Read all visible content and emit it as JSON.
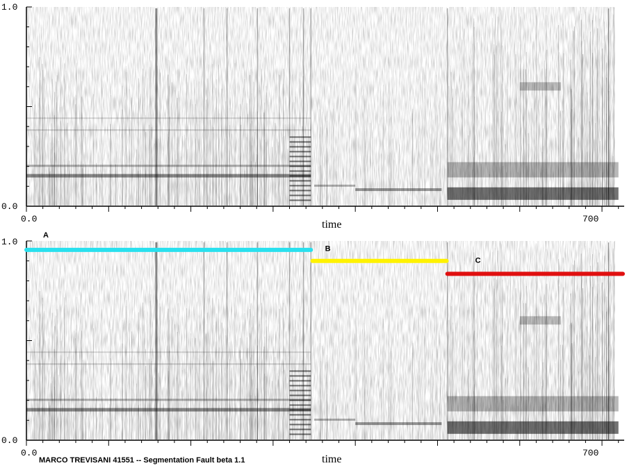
{
  "chart_data": [
    {
      "type": "heatmap",
      "panel": "top",
      "xlabel": "time",
      "x_ticks": [
        "0.0",
        "700"
      ],
      "y_ticks": [
        "0.0",
        "1.0"
      ],
      "xlim": [
        0,
        720
      ],
      "ylim": [
        0,
        1
      ],
      "grid": false,
      "colors": {
        "ink": "#000000",
        "background": "#ffffff"
      }
    },
    {
      "type": "heatmap",
      "panel": "bottom",
      "xlabel": "time",
      "x_ticks": [
        "0.0",
        "700"
      ],
      "y_ticks": [
        "0.0",
        "1.0"
      ],
      "xlim": [
        0,
        720
      ],
      "ylim": [
        0,
        1
      ],
      "grid": false,
      "segments": [
        {
          "label": "A",
          "start": 0,
          "end": 346,
          "level": 0.955,
          "color": "#29e0ee"
        },
        {
          "label": "B",
          "start": 348,
          "end": 511,
          "level": 0.9,
          "color": "#fff200"
        },
        {
          "label": "C",
          "start": 512,
          "end": 727,
          "level": 0.835,
          "color": "#e01010"
        }
      ]
    }
  ],
  "footer": {
    "credit": "MARCO TREVISANI 41551 -- Segmentation Fault beta 1.1"
  }
}
